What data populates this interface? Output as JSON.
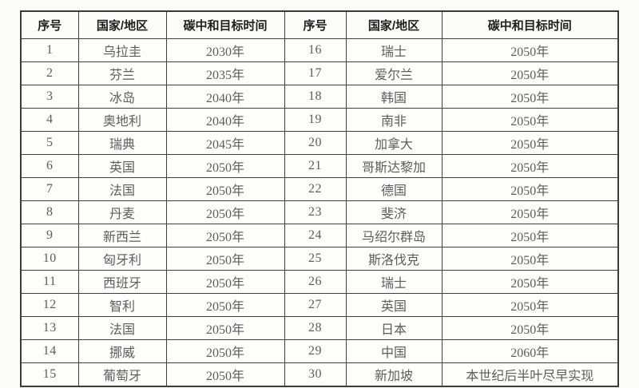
{
  "table": {
    "headers": [
      "序号",
      "国家/地区",
      "碳中和目标时间"
    ],
    "rows": [
      {
        "no": "1",
        "country": "乌拉圭",
        "target": "2030年"
      },
      {
        "no": "2",
        "country": "芬兰",
        "target": "2035年"
      },
      {
        "no": "3",
        "country": "冰岛",
        "target": "2040年"
      },
      {
        "no": "4",
        "country": "奥地利",
        "target": "2040年"
      },
      {
        "no": "5",
        "country": "瑞典",
        "target": "2045年"
      },
      {
        "no": "6",
        "country": "英国",
        "target": "2050年"
      },
      {
        "no": "7",
        "country": "法国",
        "target": "2050年"
      },
      {
        "no": "8",
        "country": "丹麦",
        "target": "2050年"
      },
      {
        "no": "9",
        "country": "新西兰",
        "target": "2050年"
      },
      {
        "no": "10",
        "country": "匈牙利",
        "target": "2050年"
      },
      {
        "no": "11",
        "country": "西班牙",
        "target": "2050年"
      },
      {
        "no": "12",
        "country": "智利",
        "target": "2050年"
      },
      {
        "no": "13",
        "country": "法国",
        "target": "2050年"
      },
      {
        "no": "14",
        "country": "挪威",
        "target": "2050年"
      },
      {
        "no": "15",
        "country": "葡萄牙",
        "target": "2050年"
      },
      {
        "no": "16",
        "country": "瑞士",
        "target": "2050年"
      },
      {
        "no": "17",
        "country": "爱尔兰",
        "target": "2050年"
      },
      {
        "no": "18",
        "country": "韩国",
        "target": "2050年"
      },
      {
        "no": "19",
        "country": "南非",
        "target": "2050年"
      },
      {
        "no": "20",
        "country": "加拿大",
        "target": "2050年"
      },
      {
        "no": "21",
        "country": "哥斯达黎加",
        "target": "2050年"
      },
      {
        "no": "22",
        "country": "德国",
        "target": "2050年"
      },
      {
        "no": "23",
        "country": "斐济",
        "target": "2050年"
      },
      {
        "no": "24",
        "country": "马绍尔群岛",
        "target": "2050年"
      },
      {
        "no": "25",
        "country": "斯洛伐克",
        "target": "2050年"
      },
      {
        "no": "26",
        "country": "瑞士",
        "target": "2050年"
      },
      {
        "no": "27",
        "country": "英国",
        "target": "2050年"
      },
      {
        "no": "28",
        "country": "日本",
        "target": "2050年"
      },
      {
        "no": "29",
        "country": "中国",
        "target": "2060年"
      },
      {
        "no": "30",
        "country": "新加坡",
        "target": "本世纪后半叶尽早实现"
      }
    ],
    "colors": {
      "border": "#3b3b3b",
      "header_text": "#1e1e1e",
      "body_text": "#5d5d5e",
      "background": "#fbfbfa"
    }
  }
}
